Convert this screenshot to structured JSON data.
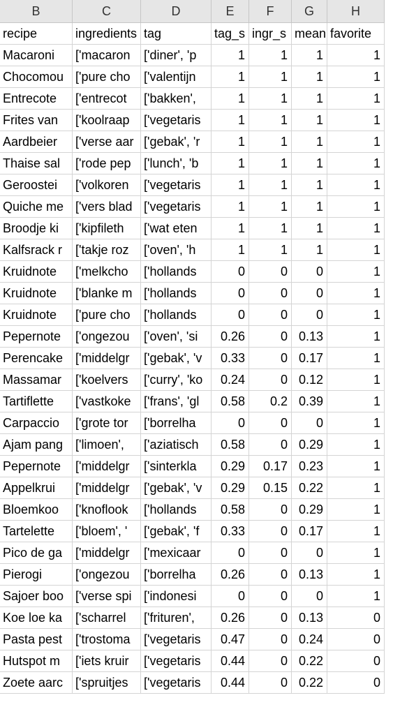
{
  "columns": [
    "B",
    "C",
    "D",
    "E",
    "F",
    "G",
    "H"
  ],
  "header_row": [
    "recipe",
    "ingredients",
    "tag",
    "tag_s",
    "ingr_s",
    "mean",
    "favorite"
  ],
  "rows": [
    [
      "Macaroni",
      "['macaron",
      "['diner', 'p",
      "1",
      "1",
      "1",
      "1"
    ],
    [
      "Chocomou",
      "['pure cho",
      "['valentijn",
      "1",
      "1",
      "1",
      "1"
    ],
    [
      "Entrecote",
      "['entrecot",
      "['bakken',",
      "1",
      "1",
      "1",
      "1"
    ],
    [
      "Frites van",
      "['koolraap",
      "['vegetaris",
      "1",
      "1",
      "1",
      "1"
    ],
    [
      "Aardbeier",
      "['verse aar",
      "['gebak', 'r",
      "1",
      "1",
      "1",
      "1"
    ],
    [
      "Thaise sal",
      "['rode pep",
      "['lunch', 'b",
      "1",
      "1",
      "1",
      "1"
    ],
    [
      "Geroostei",
      "['volkoren",
      "['vegetaris",
      "1",
      "1",
      "1",
      "1"
    ],
    [
      "Quiche me",
      "['vers blad",
      "['vegetaris",
      "1",
      "1",
      "1",
      "1"
    ],
    [
      "Broodje ki",
      "['kipfileth",
      "['wat eten",
      "1",
      "1",
      "1",
      "1"
    ],
    [
      "Kalfsrack r",
      "['takje roz",
      "['oven', 'h",
      "1",
      "1",
      "1",
      "1"
    ],
    [
      "Kruidnote",
      "['melkcho",
      "['hollands",
      "0",
      "0",
      "0",
      "1"
    ],
    [
      "Kruidnote",
      "['blanke m",
      "['hollands",
      "0",
      "0",
      "0",
      "1"
    ],
    [
      "Kruidnote",
      "['pure cho",
      "['hollands",
      "0",
      "0",
      "0",
      "1"
    ],
    [
      "Pepernote",
      "['ongezou",
      "['oven', 'si",
      "0.26",
      "0",
      "0.13",
      "1"
    ],
    [
      "Perencake",
      "['middelgr",
      "['gebak', 'v",
      "0.33",
      "0",
      "0.17",
      "1"
    ],
    [
      "Massamar",
      "['koelvers",
      "['curry', 'ko",
      "0.24",
      "0",
      "0.12",
      "1"
    ],
    [
      "Tartiflette",
      "['vastkoke",
      "['frans', 'gl",
      "0.58",
      "0.2",
      "0.39",
      "1"
    ],
    [
      "Carpaccio",
      "['grote tor",
      "['borrelha",
      "0",
      "0",
      "0",
      "1"
    ],
    [
      "Ajam pang",
      "['limoen',",
      "['aziatisch",
      "0.58",
      "0",
      "0.29",
      "1"
    ],
    [
      "Pepernote",
      "['middelgr",
      "['sinterkla",
      "0.29",
      "0.17",
      "0.23",
      "1"
    ],
    [
      "Appelkrui",
      "['middelgr",
      "['gebak', 'v",
      "0.29",
      "0.15",
      "0.22",
      "1"
    ],
    [
      "Bloemkoo",
      "['knoflook",
      "['hollands",
      "0.58",
      "0",
      "0.29",
      "1"
    ],
    [
      "Tartelette",
      "['bloem', '",
      "['gebak', 'f",
      "0.33",
      "0",
      "0.17",
      "1"
    ],
    [
      "Pico de ga",
      "['middelgr",
      "['mexicaar",
      "0",
      "0",
      "0",
      "1"
    ],
    [
      "Pierogi",
      "['ongezou",
      "['borrelha",
      "0.26",
      "0",
      "0.13",
      "1"
    ],
    [
      "Sajoer boo",
      "['verse spi",
      "['indonesi",
      "0",
      "0",
      "0",
      "1"
    ],
    [
      "Koe loe ka",
      "['scharrel",
      "['frituren',",
      "0.26",
      "0",
      "0.13",
      "0"
    ],
    [
      "Pasta pest",
      "['trostoma",
      "['vegetaris",
      "0.47",
      "0",
      "0.24",
      "0"
    ],
    [
      "Hutspot m",
      "['iets kruir",
      "['vegetaris",
      "0.44",
      "0",
      "0.22",
      "0"
    ],
    [
      "Zoete aarc",
      "['spruitjes",
      "['vegetaris",
      "0.44",
      "0",
      "0.22",
      "0"
    ]
  ]
}
